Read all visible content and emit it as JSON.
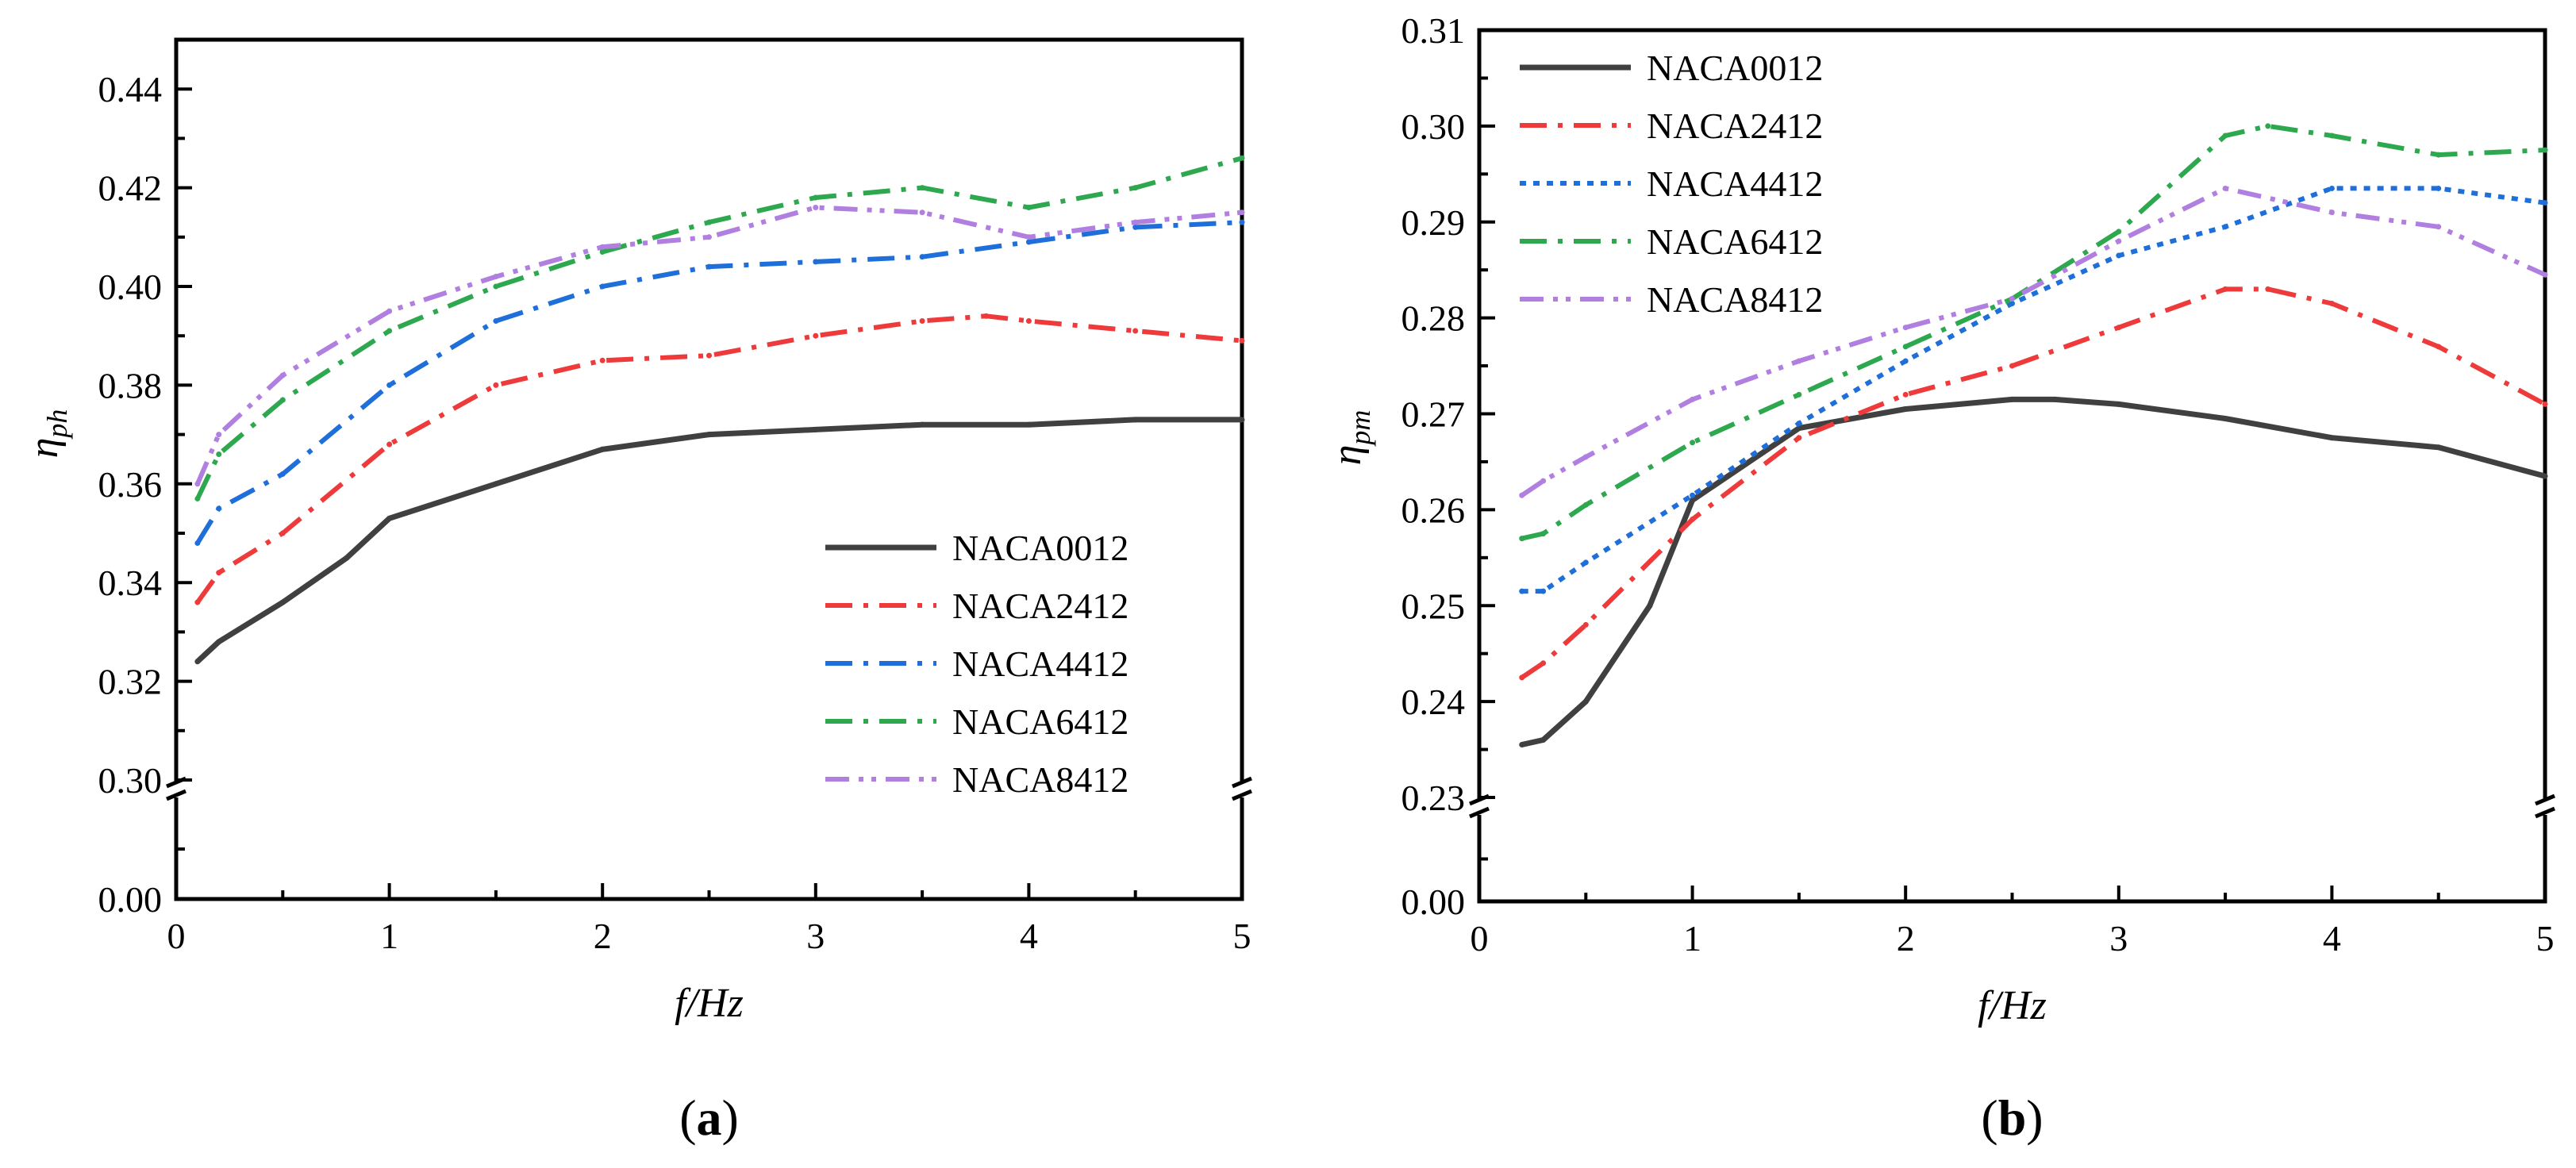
{
  "chart_data": [
    {
      "type": "line",
      "panel_label": "(a)",
      "panel_label_parts": [
        "(",
        "a",
        ")"
      ],
      "xlabel": "f/Hz",
      "ylabel": "η",
      "ylabel_sub": "ph",
      "xlim": [
        0,
        5
      ],
      "x_ticks": [
        "0",
        "1",
        "2",
        "3",
        "4",
        "5"
      ],
      "y_ticks_upper": [
        "0.30",
        "0.32",
        "0.34",
        "0.36",
        "0.38",
        "0.40",
        "0.42",
        "0.44"
      ],
      "y_tick_lower": "0.00",
      "ylim_upper": [
        0.3,
        0.45
      ],
      "ylim_lower": [
        0.0,
        0.02
      ],
      "legend_position": "lower-right",
      "series": [
        {
          "name": "NACA0012",
          "color": "#404040",
          "style": "solid",
          "x": [
            0.1,
            0.2,
            0.5,
            0.8,
            1.0,
            1.5,
            2.0,
            2.5,
            3.0,
            3.5,
            4.0,
            4.5,
            5.0
          ],
          "values": [
            0.324,
            0.328,
            0.336,
            0.345,
            0.353,
            0.36,
            0.367,
            0.37,
            0.371,
            0.372,
            0.372,
            0.373,
            0.373
          ]
        },
        {
          "name": "NACA2412",
          "color": "#ee3a3a",
          "style": "dashdot",
          "x": [
            0.1,
            0.2,
            0.5,
            1.0,
            1.5,
            2.0,
            2.5,
            3.0,
            3.5,
            3.8,
            4.0,
            4.5,
            5.0
          ],
          "values": [
            0.336,
            0.342,
            0.35,
            0.368,
            0.38,
            0.385,
            0.386,
            0.39,
            0.393,
            0.394,
            0.393,
            0.391,
            0.389
          ]
        },
        {
          "name": "NACA4412",
          "color": "#1e6fd9",
          "style": "dashdot",
          "x": [
            0.1,
            0.2,
            0.5,
            1.0,
            1.5,
            2.0,
            2.5,
            3.0,
            3.5,
            4.0,
            4.5,
            5.0
          ],
          "values": [
            0.348,
            0.355,
            0.362,
            0.38,
            0.393,
            0.4,
            0.404,
            0.405,
            0.406,
            0.409,
            0.412,
            0.413
          ]
        },
        {
          "name": "NACA6412",
          "color": "#2ea84f",
          "style": "dashdot",
          "x": [
            0.1,
            0.2,
            0.5,
            1.0,
            1.5,
            2.0,
            2.5,
            3.0,
            3.5,
            4.0,
            4.5,
            5.0
          ],
          "values": [
            0.357,
            0.366,
            0.377,
            0.391,
            0.4,
            0.407,
            0.413,
            0.418,
            0.42,
            0.416,
            0.42,
            0.426
          ]
        },
        {
          "name": "NACA8412",
          "color": "#b07fe0",
          "style": "dashdotdot",
          "x": [
            0.1,
            0.2,
            0.5,
            1.0,
            1.5,
            2.0,
            2.5,
            3.0,
            3.5,
            4.0,
            4.5,
            5.0
          ],
          "values": [
            0.36,
            0.37,
            0.382,
            0.395,
            0.402,
            0.408,
            0.41,
            0.416,
            0.415,
            0.41,
            0.413,
            0.415
          ]
        }
      ]
    },
    {
      "type": "line",
      "panel_label": "(b)",
      "panel_label_parts": [
        "(",
        "b",
        ")"
      ],
      "xlabel": "f/Hz",
      "ylabel": "η",
      "ylabel_sub": "pm",
      "xlim": [
        0,
        5
      ],
      "x_ticks": [
        "0",
        "1",
        "2",
        "3",
        "4",
        "5"
      ],
      "y_ticks_upper": [
        "0.23",
        "0.24",
        "0.25",
        "0.26",
        "0.27",
        "0.28",
        "0.29",
        "0.30",
        "0.31"
      ],
      "y_tick_lower": "0.00",
      "ylim_upper": [
        0.23,
        0.31
      ],
      "ylim_lower": [
        0.0,
        0.01
      ],
      "legend_position": "top-left",
      "series": [
        {
          "name": "NACA0012",
          "color": "#404040",
          "style": "solid",
          "x": [
            0.2,
            0.3,
            0.5,
            0.8,
            1.0,
            1.5,
            2.0,
            2.5,
            2.7,
            3.0,
            3.5,
            4.0,
            4.5,
            5.0
          ],
          "values": [
            0.2355,
            0.236,
            0.24,
            0.25,
            0.261,
            0.2685,
            0.2705,
            0.2715,
            0.2715,
            0.271,
            0.2695,
            0.2675,
            0.2665,
            0.2635
          ]
        },
        {
          "name": "NACA2412",
          "color": "#ee3a3a",
          "style": "dashdot",
          "x": [
            0.2,
            0.3,
            0.5,
            1.0,
            1.5,
            2.0,
            2.5,
            3.0,
            3.5,
            3.7,
            4.0,
            4.5,
            5.0
          ],
          "values": [
            0.2425,
            0.244,
            0.248,
            0.259,
            0.2675,
            0.272,
            0.275,
            0.279,
            0.283,
            0.283,
            0.2815,
            0.277,
            0.271
          ]
        },
        {
          "name": "NACA4412",
          "color": "#1e6fd9",
          "style": "dotted",
          "x": [
            0.2,
            0.3,
            0.5,
            1.0,
            1.5,
            2.0,
            2.5,
            3.0,
            3.5,
            4.0,
            4.5,
            5.0
          ],
          "values": [
            0.2515,
            0.2515,
            0.2545,
            0.2615,
            0.269,
            0.2755,
            0.2815,
            0.2865,
            0.2895,
            0.2935,
            0.2935,
            0.292
          ]
        },
        {
          "name": "NACA6412",
          "color": "#2ea84f",
          "style": "dashdot",
          "x": [
            0.2,
            0.3,
            0.5,
            1.0,
            1.5,
            2.0,
            2.5,
            3.0,
            3.5,
            3.7,
            4.0,
            4.5,
            5.0
          ],
          "values": [
            0.257,
            0.2575,
            0.2605,
            0.267,
            0.272,
            0.277,
            0.282,
            0.289,
            0.299,
            0.3,
            0.299,
            0.297,
            0.2975
          ]
        },
        {
          "name": "NACA8412",
          "color": "#b07fe0",
          "style": "dashdotdot",
          "x": [
            0.2,
            0.3,
            0.5,
            1.0,
            1.5,
            2.0,
            2.5,
            3.0,
            3.5,
            4.0,
            4.5,
            5.0
          ],
          "values": [
            0.2615,
            0.263,
            0.2655,
            0.2715,
            0.2755,
            0.279,
            0.282,
            0.288,
            0.2935,
            0.291,
            0.2895,
            0.2845
          ]
        }
      ]
    }
  ]
}
